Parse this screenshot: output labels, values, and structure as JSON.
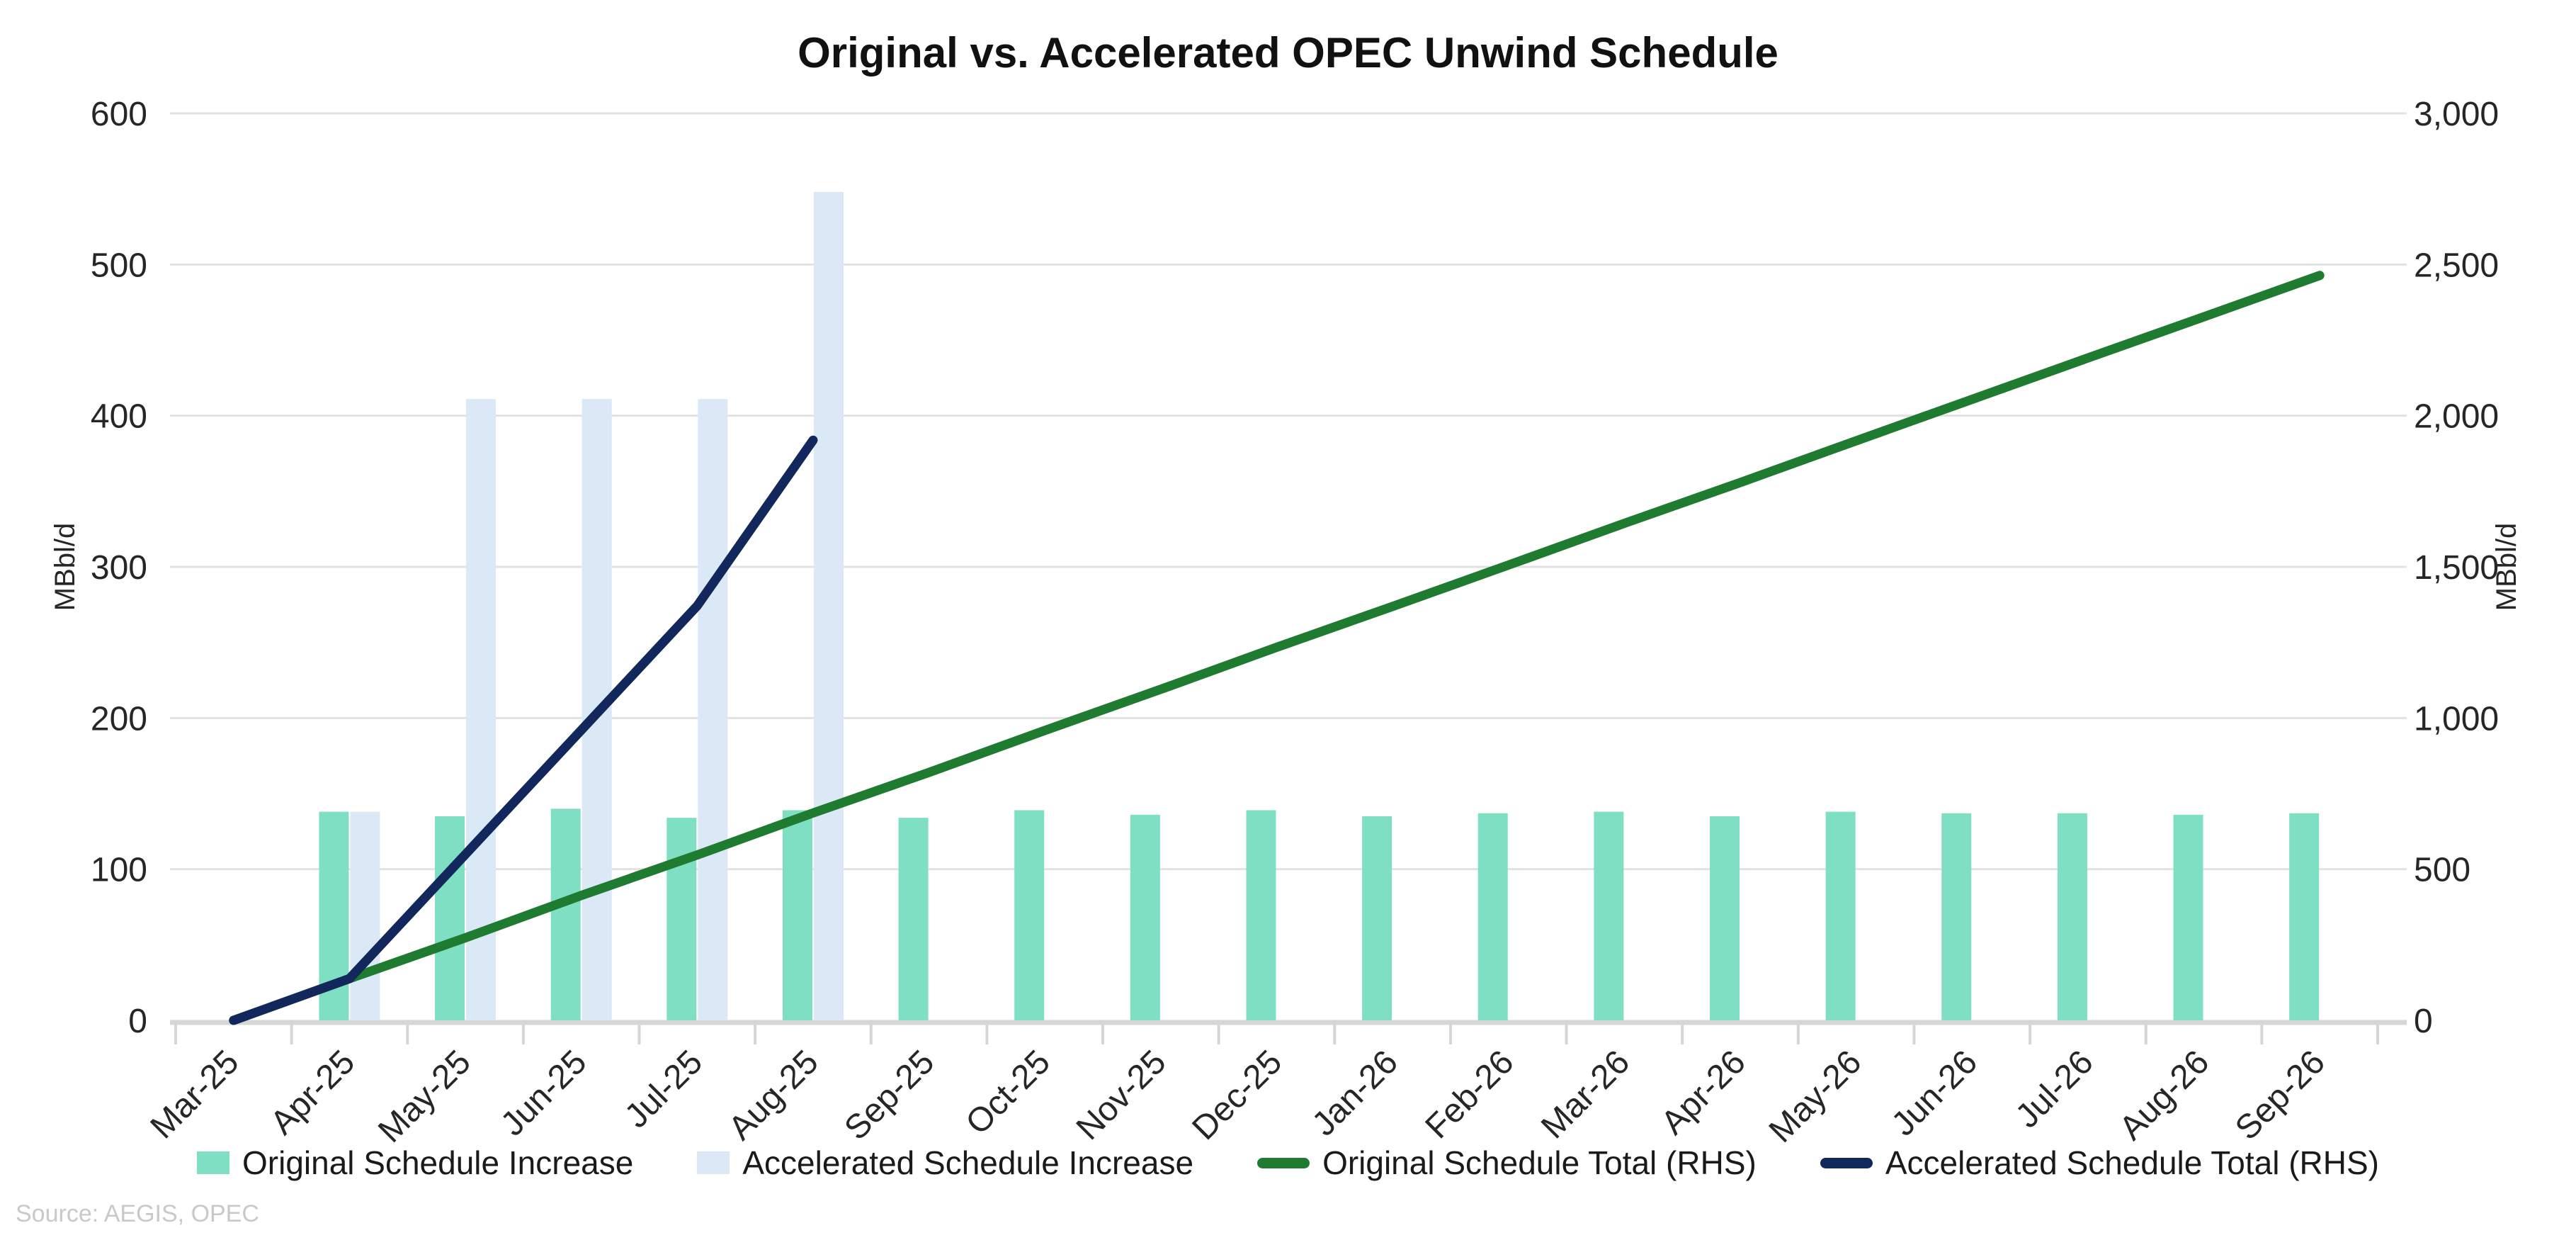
{
  "title": "Original vs. Accelerated OPEC Unwind Schedule",
  "source": "Source: AEGIS, OPEC",
  "colors": {
    "bar_original": "#7FDFC2",
    "bar_accelerated": "#DBE8F6",
    "line_original": "#1E7B2F",
    "line_accelerated": "#12275B",
    "gridline": "#E2E2E2",
    "axis_line": "#D6D6D6",
    "tick_text": "#262626",
    "title_text": "#111111",
    "source_text": "#C9C9C9"
  },
  "chart_data": {
    "type": "bar",
    "subtype": "combo-bar-line-dual-axis",
    "title": "Original vs. Accelerated OPEC Unwind Schedule",
    "grid": "horizontal",
    "legend_position": "bottom",
    "categories": [
      "Mar-25",
      "Apr-25",
      "May-25",
      "Jun-25",
      "Jul-25",
      "Aug-25",
      "Sep-25",
      "Oct-25",
      "Nov-25",
      "Dec-25",
      "Jan-26",
      "Feb-26",
      "Mar-26",
      "Apr-26",
      "May-26",
      "Jun-26",
      "Jul-26",
      "Aug-26",
      "Sep-26"
    ],
    "left_axis": {
      "label": "MBbl/d",
      "min": 0,
      "max": 600,
      "tick_step": 100,
      "tick_labels": [
        "0",
        "100",
        "200",
        "300",
        "400",
        "500",
        "600"
      ]
    },
    "right_axis": {
      "label": "MBbl/d",
      "min": 0,
      "max": 3000,
      "tick_step": 500,
      "tick_labels": [
        "0",
        "500",
        "1,000",
        "1,500",
        "2,000",
        "2,500",
        "3,000"
      ]
    },
    "series": [
      {
        "name": "Original Schedule Increase",
        "type": "bar",
        "axis": "left",
        "color": "#7FDFC2",
        "values": [
          null,
          138,
          135,
          140,
          134,
          139,
          134,
          139,
          136,
          139,
          135,
          137,
          138,
          135,
          138,
          137,
          137,
          136,
          137
        ]
      },
      {
        "name": "Accelerated Schedule Increase",
        "type": "bar",
        "axis": "left",
        "color": "#DBE8F6",
        "values": [
          null,
          138,
          411,
          411,
          411,
          548,
          null,
          null,
          null,
          null,
          null,
          null,
          null,
          null,
          null,
          null,
          null,
          null,
          null
        ]
      },
      {
        "name": "Original Schedule Total (RHS)",
        "type": "line",
        "axis": "right",
        "color": "#1E7B2F",
        "values": [
          0,
          138,
          273,
          413,
          547,
          686,
          820,
          959,
          1095,
          1234,
          1369,
          1506,
          1644,
          1779,
          1917,
          2054,
          2191,
          2327,
          2464
        ]
      },
      {
        "name": "Accelerated Schedule Total (RHS)",
        "type": "line",
        "axis": "right",
        "color": "#12275B",
        "values": [
          0,
          138,
          549,
          960,
          1371,
          1919,
          null,
          null,
          null,
          null,
          null,
          null,
          null,
          null,
          null,
          null,
          null,
          null,
          null
        ]
      }
    ]
  }
}
